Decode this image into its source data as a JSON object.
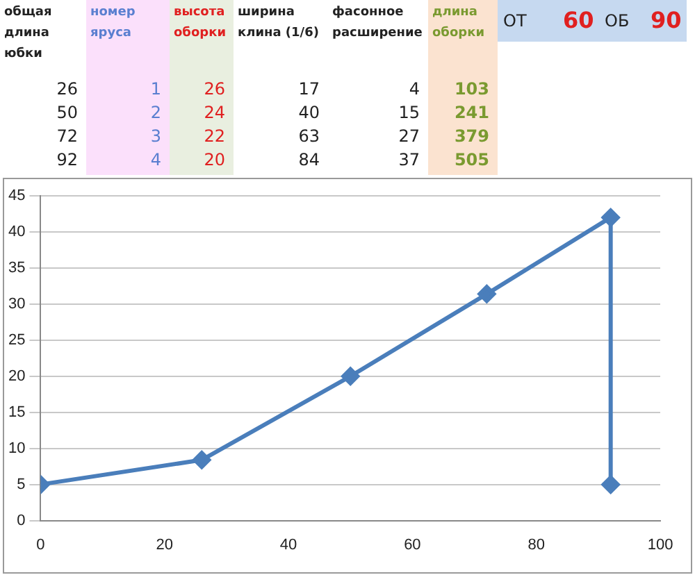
{
  "chart_data": [
    {
      "type": "other",
      "annotations": [
        "общая длина юбки",
        "номер яруса",
        "высота оборки",
        "ширина клина (1/6)",
        "фасонное расширение",
        "длина оборки",
        "ОТ",
        "60",
        "ОБ",
        "90",
        "26",
        "1",
        "26",
        "17",
        "4",
        "103",
        "50",
        "2",
        "24",
        "40",
        "15",
        "241",
        "72",
        "3",
        "22",
        "63",
        "27",
        "379",
        "92",
        "4",
        "20",
        "84",
        "37",
        "505"
      ]
    },
    {
      "type": "line",
      "x": [
        0,
        26,
        50,
        72,
        92,
        92
      ],
      "series": [
        {
          "color": "#4a7ebb",
          "values": [
            5,
            8.4,
            20,
            31.4,
            42,
            5
          ]
        }
      ],
      "xlim": [
        0,
        100
      ],
      "xticks": [
        0,
        20,
        40,
        60,
        80,
        100
      ],
      "ylim": [
        0,
        45
      ],
      "yticks": [
        0,
        5,
        10,
        15,
        20,
        25,
        30,
        35,
        40,
        45
      ],
      "grid": "y",
      "legend": false,
      "marker": "diamond",
      "line_style": "solid"
    }
  ]
}
